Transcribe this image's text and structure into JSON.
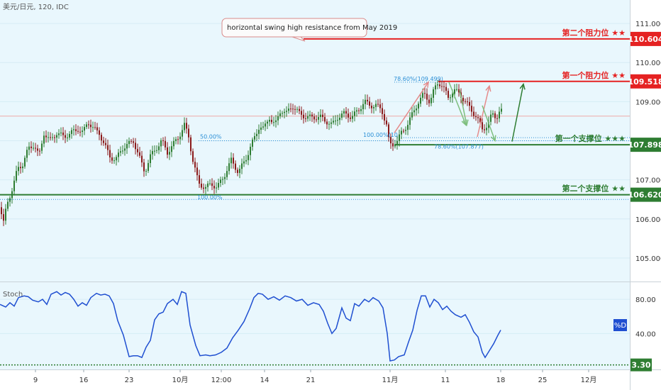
{
  "header": {
    "title": "美元/日元, 120, IDC"
  },
  "annotation": {
    "text": "horizontal swing high resistance from May 2019"
  },
  "colors": {
    "bg": "#e9f7fd",
    "candle_up": "#2e7d32",
    "candle_down": "#8b1a1a",
    "resistance": "#e52222",
    "support": "#2e7d32",
    "stoch": "#1f4fd1",
    "fib": "#2b8fd6"
  },
  "chart_data": [
    {
      "type": "candlestick",
      "title": "美元/日元, 120, IDC",
      "ylim": [
        104.4,
        111.6
      ],
      "yticks": [
        105.0,
        106.0,
        107.0,
        108.0,
        109.0,
        110.0,
        111.0
      ],
      "x_ticks": [
        "9",
        "16",
        "23",
        "10月",
        "12:00",
        "14",
        "21",
        "11月",
        "11",
        "18",
        "25",
        "12月"
      ],
      "levels": [
        {
          "name": "第二个阻力位 ★★",
          "value": 110.604,
          "label": "110.604",
          "type": "resistance"
        },
        {
          "name": "第一个阻力位 ★★",
          "value": 109.518,
          "label": "109.518",
          "type": "resistance"
        },
        {
          "name": "第一个支撑位 ★★★",
          "value": 107.898,
          "label": "107.898",
          "type": "support"
        },
        {
          "name": "第二个支撑位 ★★",
          "value": 106.62,
          "label": "106.620",
          "type": "support"
        }
      ],
      "fib_labels": [
        "78.60%(109.499)",
        "50.00%",
        "100.00%(10",
        "78.60%(107.877)",
        "100.00%"
      ],
      "close_points": [
        [
          0,
          106.3
        ],
        [
          5,
          105.9
        ],
        [
          10,
          106.4
        ],
        [
          18,
          106.8
        ],
        [
          25,
          107.3
        ],
        [
          32,
          107.4
        ],
        [
          40,
          107.8
        ],
        [
          48,
          107.9
        ],
        [
          55,
          107.6
        ],
        [
          62,
          108.2
        ],
        [
          70,
          108.0
        ],
        [
          80,
          108.2
        ],
        [
          90,
          108.1
        ],
        [
          100,
          108.2
        ],
        [
          110,
          108.3
        ],
        [
          117,
          108.2
        ],
        [
          124,
          108.5
        ],
        [
          132,
          108.3
        ],
        [
          140,
          108.2
        ],
        [
          147,
          107.9
        ],
        [
          155,
          107.6
        ],
        [
          163,
          107.5
        ],
        [
          172,
          107.8
        ],
        [
          180,
          107.9
        ],
        [
          188,
          108.0
        ],
        [
          196,
          107.6
        ],
        [
          204,
          107.2
        ],
        [
          212,
          107.6
        ],
        [
          220,
          107.8
        ],
        [
          228,
          108.0
        ],
        [
          236,
          107.7
        ],
        [
          244,
          107.9
        ],
        [
          252,
          108.1
        ],
        [
          260,
          108.4
        ],
        [
          266,
          108.1
        ],
        [
          272,
          107.5
        ],
        [
          280,
          106.9
        ],
        [
          290,
          106.8
        ],
        [
          298,
          106.9
        ],
        [
          306,
          106.8
        ],
        [
          316,
          107.1
        ],
        [
          326,
          107.5
        ],
        [
          336,
          107.2
        ],
        [
          346,
          107.5
        ],
        [
          354,
          107.9
        ],
        [
          360,
          108.1
        ],
        [
          366,
          108.4
        ],
        [
          372,
          108.3
        ],
        [
          380,
          108.6
        ],
        [
          388,
          108.4
        ],
        [
          396,
          108.8
        ],
        [
          404,
          108.7
        ],
        [
          412,
          108.9
        ],
        [
          422,
          108.7
        ],
        [
          432,
          108.6
        ],
        [
          442,
          108.6
        ],
        [
          452,
          108.6
        ],
        [
          460,
          108.5
        ],
        [
          468,
          108.4
        ],
        [
          476,
          108.6
        ],
        [
          486,
          108.7
        ],
        [
          496,
          108.6
        ],
        [
          506,
          108.8
        ],
        [
          514,
          109.0
        ],
        [
          522,
          108.9
        ],
        [
          530,
          108.9
        ],
        [
          538,
          108.8
        ],
        [
          545,
          108.4
        ],
        [
          549,
          107.9
        ],
        [
          554,
          107.9
        ],
        [
          560,
          108.0
        ],
        [
          566,
          108.2
        ],
        [
          574,
          108.4
        ],
        [
          582,
          108.7
        ],
        [
          590,
          109.0
        ],
        [
          598,
          109.2
        ],
        [
          606,
          109.0
        ],
        [
          612,
          109.3
        ],
        [
          618,
          109.5
        ],
        [
          624,
          109.4
        ],
        [
          632,
          109.1
        ],
        [
          640,
          109.3
        ],
        [
          648,
          109.2
        ],
        [
          656,
          109.0
        ],
        [
          664,
          108.8
        ],
        [
          672,
          108.6
        ],
        [
          680,
          108.3
        ],
        [
          688,
          108.4
        ],
        [
          694,
          108.7
        ],
        [
          700,
          108.6
        ],
        [
          706,
          108.8
        ],
        [
          710,
          108.6
        ]
      ],
      "swing_arrows": [
        {
          "color": "#e58b8b",
          "from": [
            556,
            108.2
          ],
          "to": [
            604,
            109.5
          ]
        },
        {
          "color": "#7fbf7f",
          "from": [
            633,
            109.5
          ],
          "to": [
            657,
            108.4
          ]
        },
        {
          "color": "#7fbf7f",
          "from": [
            648,
            109.3
          ],
          "to": [
            658,
            108.4
          ]
        },
        {
          "color": "#e58b8b",
          "from": [
            673,
            108.1
          ],
          "to": [
            690,
            109.4
          ]
        },
        {
          "color": "#7fbf7f",
          "from": [
            680,
            108.9
          ],
          "to": [
            698,
            108.0
          ]
        },
        {
          "color": "#2e7d32",
          "from": [
            722,
            107.98
          ],
          "to": [
            738,
            109.45
          ]
        }
      ]
    },
    {
      "type": "line",
      "title": "Stoch",
      "ylim": [
        -2,
        100
      ],
      "yticks": [
        40.0,
        80.0
      ],
      "series": [
        {
          "name": "%D",
          "points": [
            [
              0,
              74
            ],
            [
              8,
              71
            ],
            [
              14,
              76
            ],
            [
              20,
              72
            ],
            [
              26,
              82
            ],
            [
              34,
              84
            ],
            [
              40,
              83
            ],
            [
              46,
              79
            ],
            [
              54,
              77
            ],
            [
              60,
              80
            ],
            [
              66,
              74
            ],
            [
              72,
              86
            ],
            [
              80,
              89
            ],
            [
              86,
              85
            ],
            [
              92,
              88
            ],
            [
              98,
              86
            ],
            [
              104,
              80
            ],
            [
              110,
              72
            ],
            [
              116,
              76
            ],
            [
              122,
              73
            ],
            [
              128,
              82
            ],
            [
              136,
              87
            ],
            [
              142,
              85
            ],
            [
              148,
              86
            ],
            [
              154,
              84
            ],
            [
              160,
              75
            ],
            [
              166,
              55
            ],
            [
              174,
              38
            ],
            [
              182,
              13
            ],
            [
              188,
              14
            ],
            [
              194,
              14
            ],
            [
              200,
              12
            ],
            [
              206,
              24
            ],
            [
              212,
              32
            ],
            [
              218,
              56
            ],
            [
              224,
              63
            ],
            [
              230,
              65
            ],
            [
              236,
              75
            ],
            [
              244,
              80
            ],
            [
              250,
              74
            ],
            [
              256,
              89
            ],
            [
              262,
              87
            ],
            [
              268,
              50
            ],
            [
              276,
              26
            ],
            [
              282,
              14
            ],
            [
              290,
              15
            ],
            [
              296,
              14
            ],
            [
              304,
              15
            ],
            [
              312,
              18
            ],
            [
              320,
              23
            ],
            [
              328,
              35
            ],
            [
              336,
              44
            ],
            [
              344,
              54
            ],
            [
              352,
              69
            ],
            [
              358,
              82
            ],
            [
              364,
              87
            ],
            [
              370,
              86
            ],
            [
              378,
              80
            ],
            [
              386,
              83
            ],
            [
              394,
              79
            ],
            [
              402,
              84
            ],
            [
              410,
              82
            ],
            [
              418,
              78
            ],
            [
              426,
              80
            ],
            [
              434,
              73
            ],
            [
              442,
              76
            ],
            [
              450,
              74
            ],
            [
              456,
              66
            ],
            [
              462,
              52
            ],
            [
              468,
              40
            ],
            [
              474,
              46
            ],
            [
              482,
              70
            ],
            [
              488,
              58
            ],
            [
              494,
              55
            ],
            [
              500,
              75
            ],
            [
              506,
              72
            ],
            [
              514,
              80
            ],
            [
              520,
              77
            ],
            [
              526,
              82
            ],
            [
              534,
              78
            ],
            [
              540,
              70
            ],
            [
              546,
              40
            ],
            [
              550,
              8
            ],
            [
              556,
              9
            ],
            [
              562,
              13
            ],
            [
              570,
              15
            ],
            [
              576,
              30
            ],
            [
              582,
              44
            ],
            [
              588,
              67
            ],
            [
              594,
              84
            ],
            [
              600,
              84
            ],
            [
              606,
              71
            ],
            [
              612,
              80
            ],
            [
              618,
              76
            ],
            [
              624,
              68
            ],
            [
              630,
              72
            ],
            [
              636,
              66
            ],
            [
              642,
              62
            ],
            [
              650,
              59
            ],
            [
              656,
              62
            ],
            [
              662,
              53
            ],
            [
              668,
              42
            ],
            [
              674,
              36
            ],
            [
              680,
              18
            ],
            [
              684,
              12
            ],
            [
              690,
              20
            ],
            [
              696,
              28
            ],
            [
              702,
              38
            ],
            [
              706,
              44
            ]
          ]
        }
      ],
      "current_label": "%D",
      "reference_line": {
        "value": 3.3,
        "label": "3.30"
      }
    }
  ]
}
